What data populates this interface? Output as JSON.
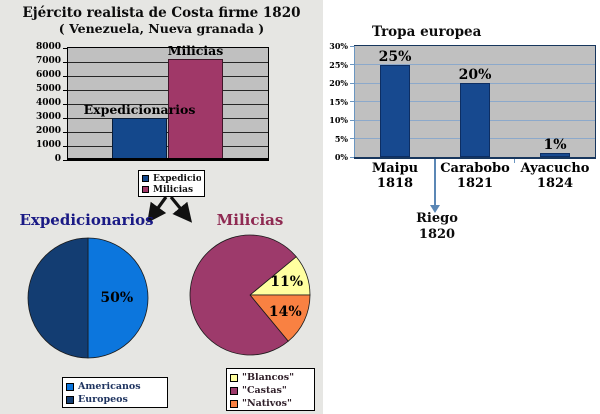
{
  "palette": {
    "left_panel_bg": "#e6e6e3",
    "right_panel_bg": "#ffffff",
    "plot_area_bg": "#c0c0c0",
    "steel_axis_blue": "#6b96c1",
    "dark_axis_navy": "#17365d",
    "arrow_black": "#111111"
  },
  "chart_data": [
    {
      "id": "ejercito-bar",
      "type": "bar",
      "title": "Ejército realista de Costa firme 1820",
      "subtitle": "( Venezuela, Nueva granada )",
      "categories": [
        "Expedicionarios",
        "Milicias"
      ],
      "values": [
        3000,
        7200
      ],
      "bar_labels": [
        "Expedicionarios",
        "Milicias"
      ],
      "bar_colors": [
        "#14488c",
        "#a03868"
      ],
      "ylim": [
        0,
        8000
      ],
      "ytick_step": 1000,
      "ytick_labels": [
        "0",
        "1000",
        "2000",
        "3000",
        "4000",
        "5000",
        "6000",
        "7000",
        "8000"
      ],
      "grid": true,
      "legend_position": "bottom",
      "legend": [
        "Expedicionarios",
        "Milicias"
      ]
    },
    {
      "id": "tropa-bar",
      "type": "bar",
      "title": "Tropa europea",
      "categories": [
        "Maipu 1818",
        "Carabobo 1821",
        "Ayacucho 1824"
      ],
      "category_lines": [
        [
          "Maipu",
          "1818"
        ],
        [
          "Carabobo",
          "1821"
        ],
        [
          "Ayacucho",
          "1824"
        ]
      ],
      "values": [
        25,
        20,
        1
      ],
      "data_labels": [
        "25%",
        "20%",
        "1%"
      ],
      "bar_color": "#17498f",
      "ylim": [
        0,
        30
      ],
      "ytick_step": 5,
      "ytick_labels": [
        "0%",
        "5%",
        "10%",
        "15%",
        "20%",
        "25%",
        "30%"
      ],
      "grid": true,
      "legend_position": "none",
      "annotation": {
        "lines": [
          "Riego",
          "1820"
        ],
        "arrow_from_axis_between": [
          "Maipu 1818",
          "Carabobo 1821"
        ]
      }
    },
    {
      "id": "expedicionarios-pie",
      "type": "pie",
      "title": "Expedicionarios",
      "title_color": "#1a1a85",
      "start_angle_deg": 0,
      "draw_order": [
        0,
        1
      ],
      "slices": [
        {
          "label": "Americanos",
          "value": 50,
          "color": "#0c76dd",
          "data_label": "50%"
        },
        {
          "label": "Europeos",
          "value": 50,
          "color": "#133d72",
          "data_label": ""
        }
      ],
      "legend_position": "bottom"
    },
    {
      "id": "milicias-pie",
      "type": "pie",
      "title": "Milicias",
      "title_color": "#8f2a52",
      "start_angle_deg": 50.4,
      "draw_order": [
        0,
        2,
        1
      ],
      "slices": [
        {
          "label": "\"Blancos\"",
          "value": 11,
          "color": "#ffffa0",
          "data_label": "11%"
        },
        {
          "label": "\"Castas\"",
          "value": 75,
          "color": "#9d3a6b",
          "data_label": ""
        },
        {
          "label": "\"Nativos\"",
          "value": 14,
          "color": "#f98142",
          "data_label": "14%"
        }
      ],
      "legend_position": "bottom"
    }
  ]
}
